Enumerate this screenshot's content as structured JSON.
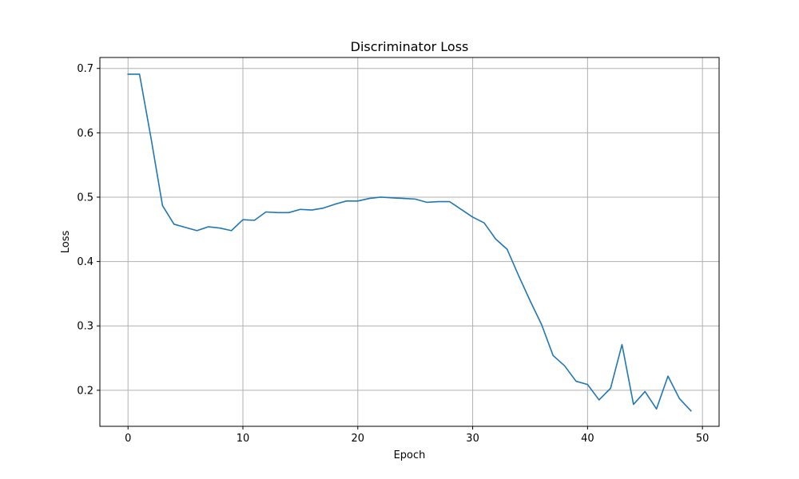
{
  "chart_data": {
    "type": "line",
    "title": "Discriminator Loss",
    "xlabel": "Epoch",
    "ylabel": "Loss",
    "xlim": [
      -2.45,
      51.45
    ],
    "ylim": [
      0.144,
      0.717
    ],
    "xticks": [
      0,
      10,
      20,
      30,
      40,
      50
    ],
    "xtick_labels": [
      "0",
      "10",
      "20",
      "30",
      "40",
      "50"
    ],
    "yticks": [
      0.2,
      0.3,
      0.4,
      0.5,
      0.6,
      0.7
    ],
    "ytick_labels": [
      "0.2",
      "0.3",
      "0.4",
      "0.5",
      "0.6",
      "0.7"
    ],
    "grid": true,
    "series": [
      {
        "color": "#1f77b4",
        "x": [
          0,
          1,
          2,
          3,
          4,
          5,
          6,
          7,
          8,
          9,
          10,
          11,
          12,
          13,
          14,
          15,
          16,
          17,
          18,
          19,
          20,
          21,
          22,
          23,
          24,
          25,
          26,
          27,
          28,
          29,
          30,
          31,
          32,
          33,
          34,
          35,
          36,
          37,
          38,
          39,
          40,
          41,
          42,
          43,
          44,
          45,
          46,
          47,
          48,
          49
        ],
        "values": [
          0.691,
          0.691,
          0.592,
          0.487,
          0.458,
          0.453,
          0.448,
          0.454,
          0.452,
          0.448,
          0.465,
          0.464,
          0.477,
          0.476,
          0.476,
          0.481,
          0.48,
          0.483,
          0.489,
          0.494,
          0.494,
          0.498,
          0.5,
          0.499,
          0.498,
          0.497,
          0.492,
          0.493,
          0.493,
          0.481,
          0.469,
          0.46,
          0.435,
          0.419,
          0.378,
          0.339,
          0.302,
          0.254,
          0.238,
          0.214,
          0.209,
          0.185,
          0.203,
          0.271,
          0.178,
          0.198,
          0.171,
          0.222,
          0.187,
          0.168
        ]
      }
    ]
  }
}
